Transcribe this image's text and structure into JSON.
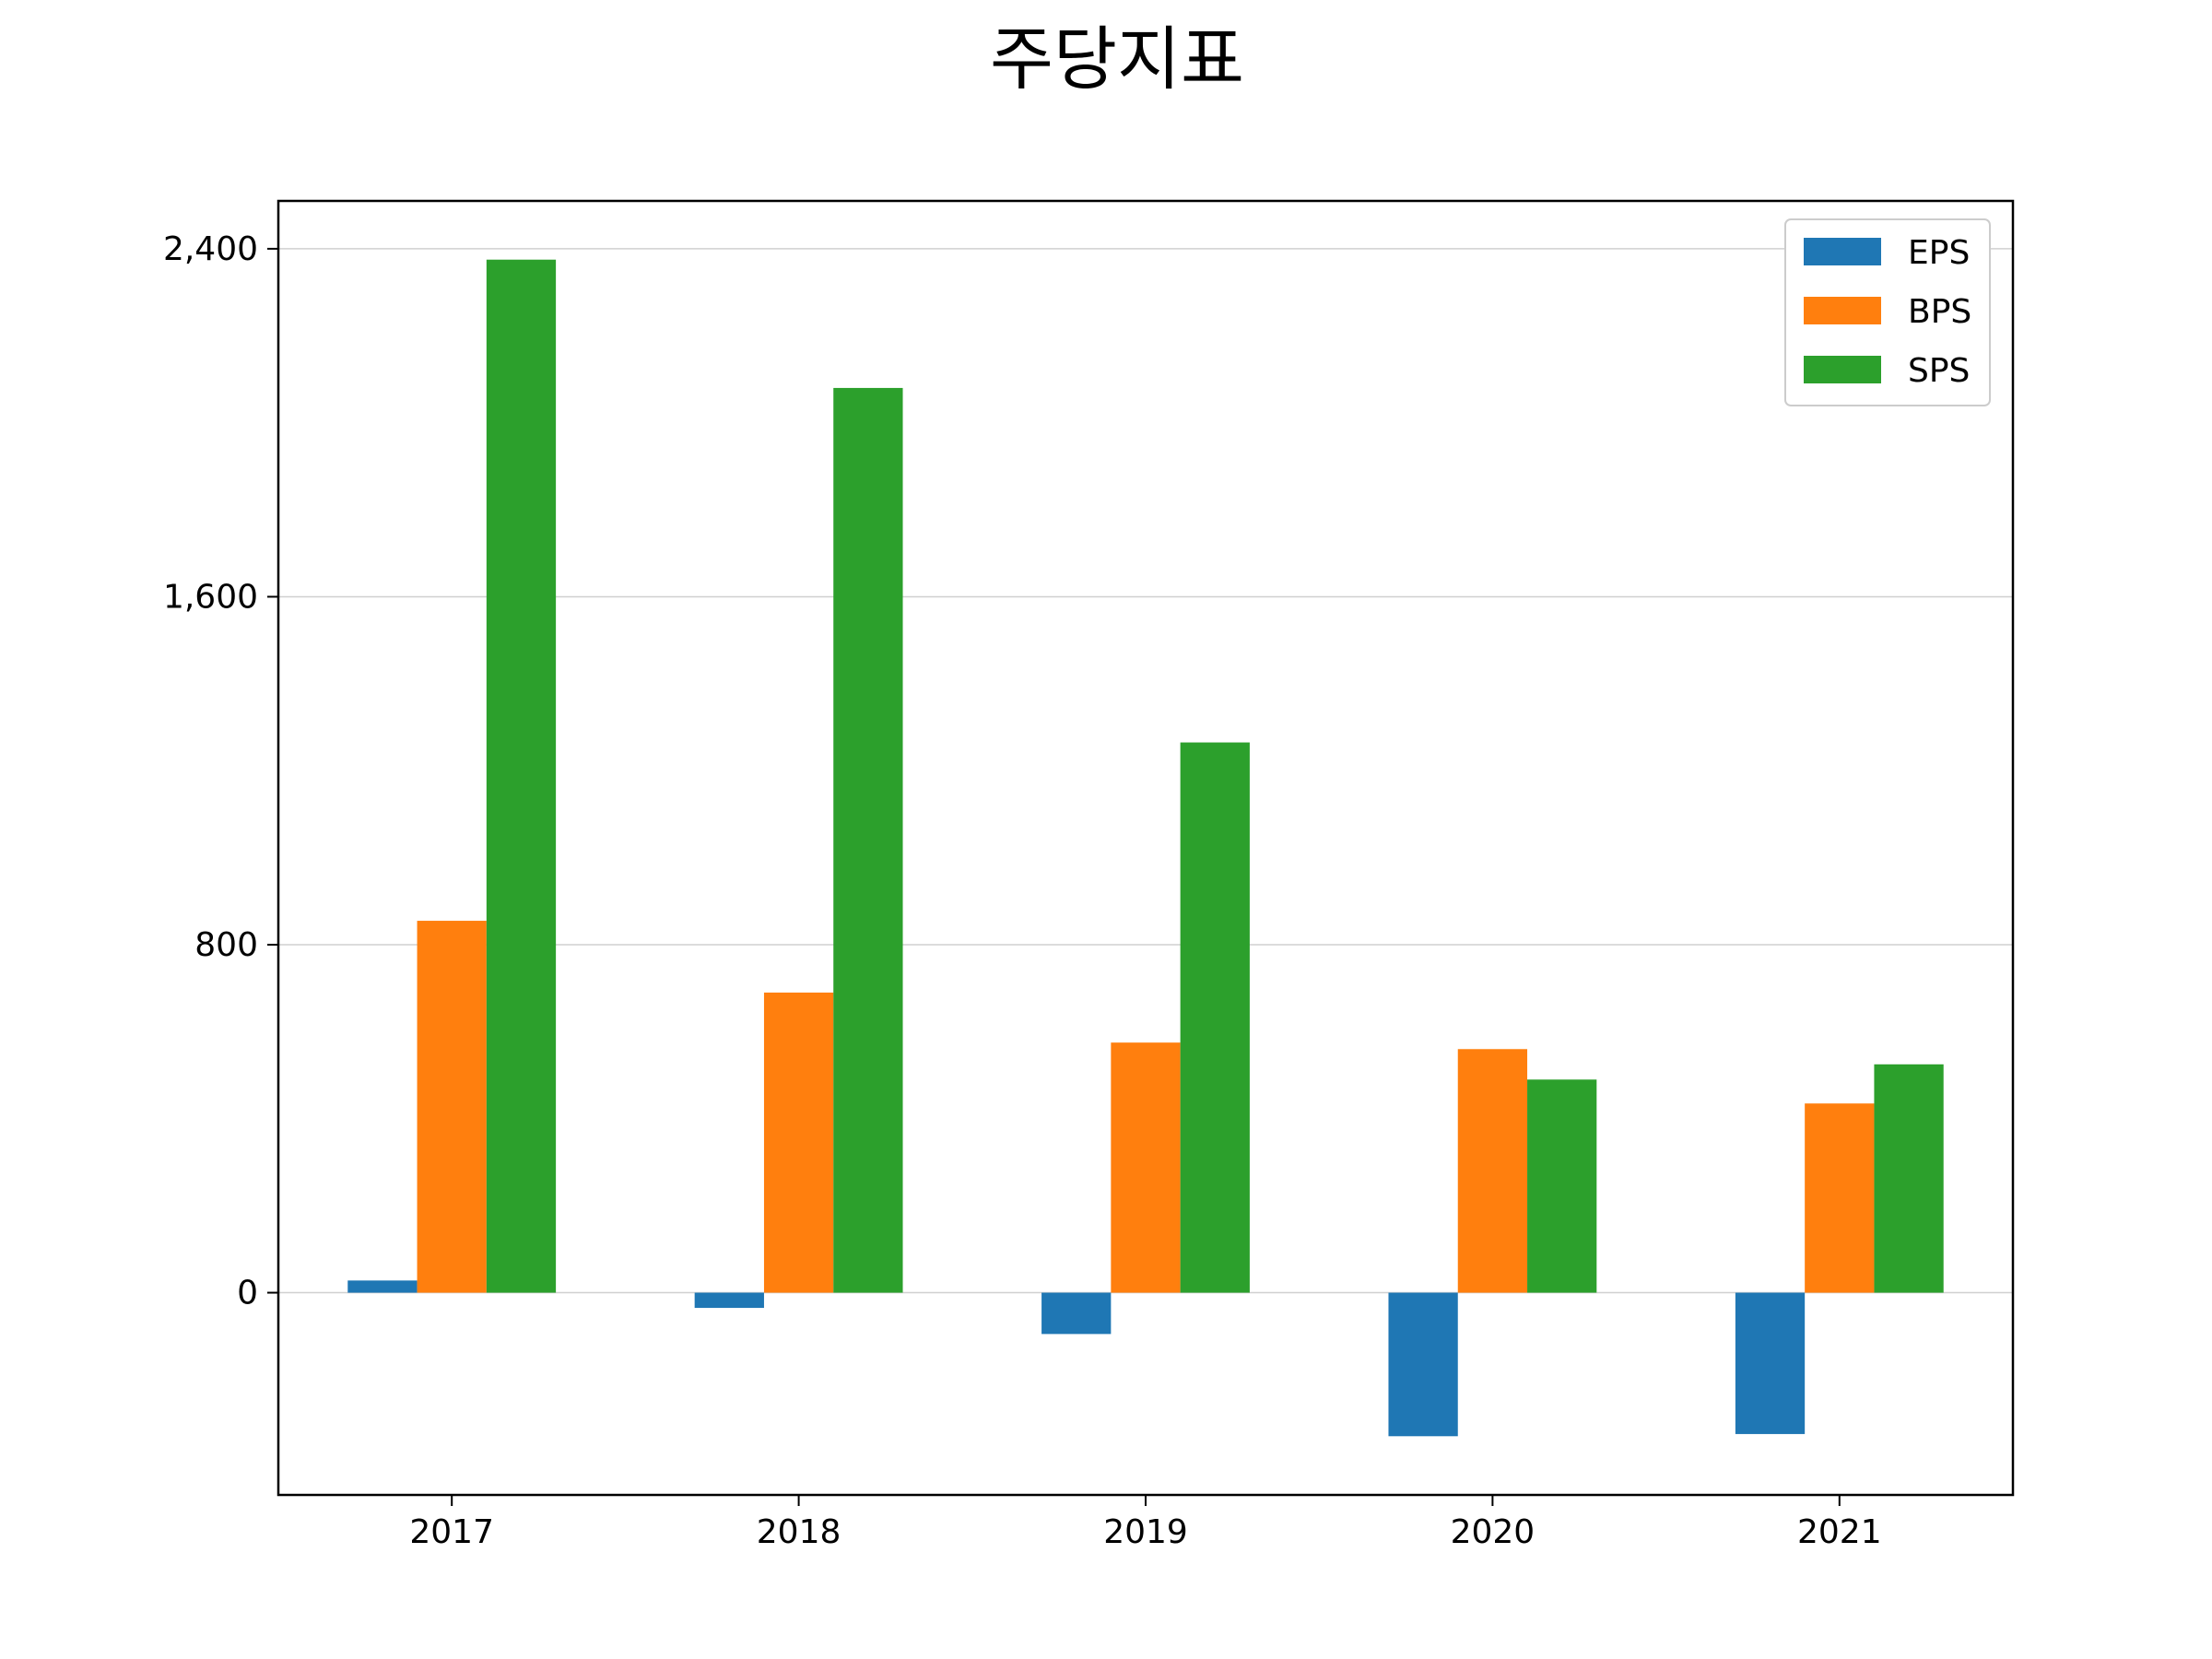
{
  "chart_data": {
    "type": "bar",
    "title": "주당지표",
    "xlabel": "",
    "ylabel": "",
    "categories": [
      "2017",
      "2018",
      "2019",
      "2020",
      "2021"
    ],
    "series": [
      {
        "name": "EPS",
        "color": "#1f77b4",
        "values": [
          28,
          -35,
          -95,
          -330,
          -325
        ]
      },
      {
        "name": "BPS",
        "color": "#ff7f0e",
        "values": [
          855,
          690,
          575,
          560,
          435
        ]
      },
      {
        "name": "SPS",
        "color": "#2ca02c",
        "values": [
          2375,
          2080,
          1265,
          490,
          525
        ]
      }
    ],
    "ylim": [
      -465,
      2510
    ],
    "yticks": [
      0,
      800,
      1600,
      2400
    ],
    "ytick_labels": [
      "0",
      "800",
      "1,600",
      "2,400"
    ],
    "grid": "horizontal",
    "legend_position": "top-right"
  }
}
